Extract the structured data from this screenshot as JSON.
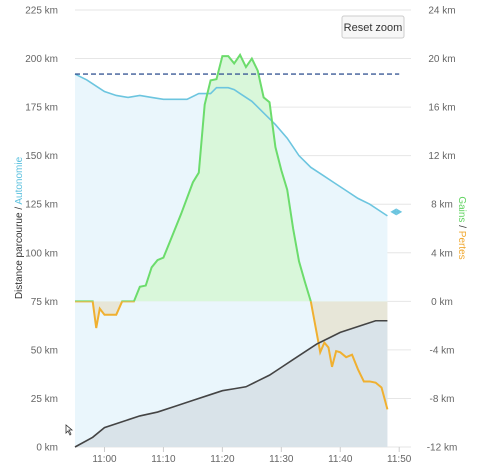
{
  "chart_data": {
    "type": "area",
    "reset_zoom_label": "Reset zoom",
    "left_axis": {
      "title_parts": [
        {
          "text": "Distance parcourue",
          "color": "#333333"
        },
        {
          "text": " / ",
          "color": "#333333"
        },
        {
          "text": "Autonomie",
          "color": "#5bc0de"
        }
      ],
      "range": [
        0,
        225
      ],
      "ticks": [
        "0 km",
        "25 km",
        "50 km",
        "75 km",
        "100 km",
        "125 km",
        "150 km",
        "175 km",
        "200 km",
        "225 km"
      ]
    },
    "right_axis": {
      "title_parts": [
        {
          "text": "Gains",
          "color": "#5fd35f"
        },
        {
          "text": " / ",
          "color": "#333333"
        },
        {
          "text": "Pertes",
          "color": "#f0a830"
        }
      ],
      "range": [
        -12,
        24
      ],
      "ticks": [
        "-12 km",
        "-8 km",
        "-4 km",
        "0 km",
        "4 km",
        "8 km",
        "12 km",
        "16 km",
        "20 km",
        "24 km"
      ]
    },
    "x_axis": {
      "range": [
        "10:55",
        "11:52"
      ],
      "ticks": [
        "11:00",
        "11:10",
        "11:20",
        "11:30",
        "11:40",
        "11:50"
      ]
    },
    "colors": {
      "autonomy": "#6cc5df",
      "autonomy_fill": "#eaf6fc",
      "distance": "#444444",
      "distance_fill": "#d9e3e9",
      "gain": "#6cdc6c",
      "gain_fill": "#d9f7da",
      "loss": "#f0b030",
      "loss_fill": "#e7e6d8",
      "reference": "#3c5a96",
      "grid": "#e6e6e6"
    },
    "reference_line": {
      "y": 192,
      "x_start": "10:55",
      "x_end": "11:50"
    },
    "series": [
      {
        "key": "autonomy",
        "axis": "left",
        "points": [
          [
            "10:55",
            192
          ],
          [
            "10:57",
            189
          ],
          [
            "10:59",
            185
          ],
          [
            "11:00",
            183
          ],
          [
            "11:02",
            181
          ],
          [
            "11:04",
            180
          ],
          [
            "11:06",
            181
          ],
          [
            "11:08",
            180
          ],
          [
            "11:10",
            179
          ],
          [
            "11:12",
            179
          ],
          [
            "11:14",
            179
          ],
          [
            "11:16",
            182
          ],
          [
            "11:18",
            182
          ],
          [
            "11:19",
            185
          ],
          [
            "11:20",
            185
          ],
          [
            "11:21",
            185
          ],
          [
            "11:22",
            184
          ],
          [
            "11:23",
            182
          ],
          [
            "11:25",
            178
          ],
          [
            "11:27",
            172
          ],
          [
            "11:29",
            166
          ],
          [
            "11:31",
            159
          ],
          [
            "11:33",
            150
          ],
          [
            "11:35",
            144
          ],
          [
            "11:37",
            140
          ],
          [
            "11:39",
            136
          ],
          [
            "11:41",
            132
          ],
          [
            "11:43",
            128
          ],
          [
            "11:45",
            125
          ],
          [
            "11:47",
            121
          ],
          [
            "11:48",
            119
          ]
        ]
      },
      {
        "key": "distance",
        "axis": "left",
        "points": [
          [
            "10:55",
            0
          ],
          [
            "10:58",
            5
          ],
          [
            "11:00",
            10
          ],
          [
            "11:03",
            13
          ],
          [
            "11:06",
            16
          ],
          [
            "11:09",
            18
          ],
          [
            "11:12",
            21
          ],
          [
            "11:15",
            24
          ],
          [
            "11:18",
            27
          ],
          [
            "11:20",
            29
          ],
          [
            "11:22",
            30
          ],
          [
            "11:24",
            31
          ],
          [
            "11:26",
            34
          ],
          [
            "11:28",
            37
          ],
          [
            "11:30",
            41
          ],
          [
            "11:32",
            45
          ],
          [
            "11:34",
            49
          ],
          [
            "11:36",
            53
          ],
          [
            "11:38",
            56
          ],
          [
            "11:40",
            59
          ],
          [
            "11:42",
            61
          ],
          [
            "11:44",
            63
          ],
          [
            "11:46",
            65
          ],
          [
            "11:48",
            65
          ]
        ]
      },
      {
        "key": "gain_loss",
        "axis": "right",
        "points": [
          [
            "10:55",
            0
          ],
          [
            "10:57",
            0
          ],
          [
            "10:58",
            0
          ],
          [
            "10:58.6",
            -2.2
          ],
          [
            "10:59.2",
            -0.6
          ],
          [
            "11:00",
            -1.1
          ],
          [
            "11:01",
            -1.1
          ],
          [
            "11:02",
            -1.1
          ],
          [
            "11:03",
            0
          ],
          [
            "11:05",
            0
          ],
          [
            "11:06",
            1.2
          ],
          [
            "11:07",
            1.3
          ],
          [
            "11:08",
            2.8
          ],
          [
            "11:09",
            3.4
          ],
          [
            "11:10",
            3.6
          ],
          [
            "11:11",
            4.8
          ],
          [
            "11:13",
            7.2
          ],
          [
            "11:15",
            9.8
          ],
          [
            "11:16",
            10.6
          ],
          [
            "11:17",
            16.2
          ],
          [
            "11:18",
            18.2
          ],
          [
            "11:19",
            18.3
          ],
          [
            "11:20",
            20.2
          ],
          [
            "11:21",
            20.2
          ],
          [
            "11:22",
            19.6
          ],
          [
            "11:23",
            20.3
          ],
          [
            "11:24",
            19.3
          ],
          [
            "11:25",
            20.0
          ],
          [
            "11:26",
            19.0
          ],
          [
            "11:27",
            16.8
          ],
          [
            "11:28",
            16.4
          ],
          [
            "11:29",
            12.7
          ],
          [
            "11:30",
            10.8
          ],
          [
            "11:31",
            9.2
          ],
          [
            "11:32",
            6.0
          ],
          [
            "11:33",
            3.3
          ],
          [
            "11:34",
            1.6
          ],
          [
            "11:35",
            0
          ],
          [
            "11:36",
            -2.6
          ],
          [
            "11:36.6",
            -4.2
          ],
          [
            "11:37.3",
            -3.4
          ],
          [
            "11:38",
            -3.8
          ],
          [
            "11:38.6",
            -5.4
          ],
          [
            "11:39.3",
            -4.1
          ],
          [
            "11:40",
            -4.2
          ],
          [
            "11:41",
            -4.6
          ],
          [
            "11:42",
            -4.4
          ],
          [
            "11:43",
            -5.6
          ],
          [
            "11:44",
            -6.6
          ],
          [
            "11:45",
            -6.6
          ],
          [
            "11:46",
            -6.7
          ],
          [
            "11:47",
            -7.1
          ],
          [
            "11:48",
            -8.9
          ]
        ]
      }
    ],
    "end_markers": [
      "11:49",
      "11:50"
    ]
  }
}
